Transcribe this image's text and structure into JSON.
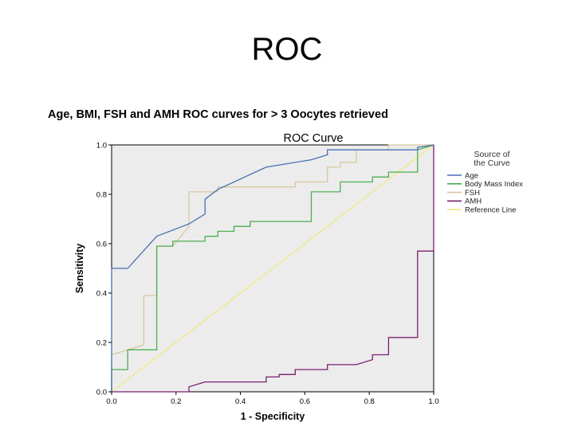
{
  "slide": {
    "title": "ROC"
  },
  "chart_data": {
    "type": "line",
    "figure_title": "Age, BMI, FSH and AMH ROC curves for > 3 Oocytes retrieved",
    "title": "ROC Curve",
    "xlabel": "1 - Specificity",
    "ylabel": "Sensitivity",
    "xlim": [
      0,
      1
    ],
    "ylim": [
      0,
      1
    ],
    "xticks": [
      "0.0",
      "0.2",
      "0.4",
      "0.6",
      "0.8",
      "1.0"
    ],
    "yticks": [
      "0.0",
      "0.2",
      "0.4",
      "0.6",
      "0.8",
      "1.0"
    ],
    "legend_title": "Source of the Curve",
    "legend_position": "right",
    "series": [
      {
        "name": "Age",
        "color": "#4a6fb5",
        "points": [
          [
            0,
            0
          ],
          [
            0,
            0.5
          ],
          [
            0.05,
            0.5
          ],
          [
            0.14,
            0.63
          ],
          [
            0.24,
            0.68
          ],
          [
            0.29,
            0.72
          ],
          [
            0.29,
            0.78
          ],
          [
            0.33,
            0.82
          ],
          [
            0.48,
            0.91
          ],
          [
            0.62,
            0.94
          ],
          [
            0.67,
            0.96
          ],
          [
            0.67,
            0.98
          ],
          [
            0.76,
            0.98
          ],
          [
            0.81,
            0.98
          ],
          [
            0.95,
            0.98
          ],
          [
            0.95,
            0.99
          ],
          [
            1,
            1
          ]
        ]
      },
      {
        "name": "Body Mass Index",
        "color": "#4caf50",
        "points": [
          [
            0,
            0
          ],
          [
            0,
            0.09
          ],
          [
            0.05,
            0.09
          ],
          [
            0.05,
            0.17
          ],
          [
            0.14,
            0.17
          ],
          [
            0.14,
            0.59
          ],
          [
            0.19,
            0.59
          ],
          [
            0.19,
            0.61
          ],
          [
            0.29,
            0.61
          ],
          [
            0.29,
            0.63
          ],
          [
            0.33,
            0.63
          ],
          [
            0.33,
            0.65
          ],
          [
            0.38,
            0.65
          ],
          [
            0.38,
            0.67
          ],
          [
            0.43,
            0.67
          ],
          [
            0.43,
            0.69
          ],
          [
            0.62,
            0.69
          ],
          [
            0.62,
            0.81
          ],
          [
            0.71,
            0.81
          ],
          [
            0.71,
            0.85
          ],
          [
            0.81,
            0.85
          ],
          [
            0.81,
            0.87
          ],
          [
            0.86,
            0.87
          ],
          [
            0.86,
            0.89
          ],
          [
            0.95,
            0.89
          ],
          [
            0.95,
            0.98
          ],
          [
            1,
            1
          ]
        ]
      },
      {
        "name": "FSH",
        "color": "#d8c8a0",
        "points": [
          [
            0,
            0
          ],
          [
            0,
            0.15
          ],
          [
            0.1,
            0.19
          ],
          [
            0.1,
            0.39
          ],
          [
            0.14,
            0.39
          ],
          [
            0.14,
            0.59
          ],
          [
            0.19,
            0.59
          ],
          [
            0.24,
            0.67
          ],
          [
            0.24,
            0.81
          ],
          [
            0.33,
            0.81
          ],
          [
            0.33,
            0.83
          ],
          [
            0.57,
            0.83
          ],
          [
            0.57,
            0.85
          ],
          [
            0.67,
            0.85
          ],
          [
            0.67,
            0.91
          ],
          [
            0.71,
            0.91
          ],
          [
            0.71,
            0.93
          ],
          [
            0.76,
            0.93
          ],
          [
            0.76,
            0.98
          ],
          [
            0.86,
            0.98
          ],
          [
            0.86,
            1
          ],
          [
            1,
            1
          ]
        ]
      },
      {
        "name": "AMH",
        "color": "#7a1f6e",
        "points": [
          [
            0,
            0
          ],
          [
            0.24,
            0
          ],
          [
            0.24,
            0.02
          ],
          [
            0.29,
            0.04
          ],
          [
            0.48,
            0.04
          ],
          [
            0.48,
            0.06
          ],
          [
            0.52,
            0.06
          ],
          [
            0.52,
            0.07
          ],
          [
            0.57,
            0.07
          ],
          [
            0.57,
            0.09
          ],
          [
            0.67,
            0.09
          ],
          [
            0.67,
            0.11
          ],
          [
            0.76,
            0.11
          ],
          [
            0.81,
            0.13
          ],
          [
            0.81,
            0.15
          ],
          [
            0.86,
            0.15
          ],
          [
            0.86,
            0.22
          ],
          [
            0.95,
            0.22
          ],
          [
            0.95,
            0.57
          ],
          [
            1,
            0.57
          ],
          [
            1,
            1
          ]
        ]
      },
      {
        "name": "Reference Line",
        "color": "#f2e880",
        "points": [
          [
            0,
            0
          ],
          [
            1,
            1
          ]
        ]
      }
    ]
  }
}
